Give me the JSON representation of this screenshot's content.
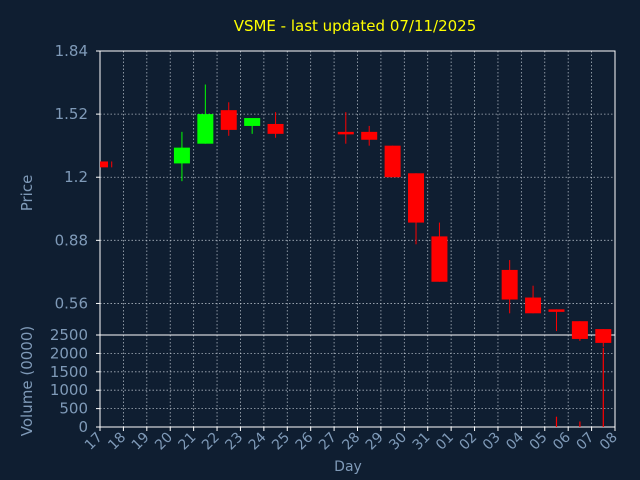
{
  "colors": {
    "background": "#0f1e31",
    "axis_text": "#7f9ab8",
    "frame": "#ffffff",
    "grid": "#d0d8e0",
    "title": "#ffff00",
    "up": "#00ff00",
    "down": "#ff0000"
  },
  "chart_data": {
    "type": "candlestick",
    "title": "VSME - last updated 07/11/2025",
    "price_ylabel": "Price",
    "volume_ylabel": "Volume (0000)",
    "xlabel": "Day",
    "price_ylim": [
      0.4,
      1.84
    ],
    "price_yticks": [
      "1.84",
      "1.52",
      "1.2",
      "0.88",
      "0.56"
    ],
    "volume_ylim": [
      0,
      2500
    ],
    "volume_yticks": [
      "2500",
      "2000",
      "1500",
      "1000",
      "500",
      "0"
    ],
    "x_ticks": [
      "17",
      "18",
      "19",
      "20",
      "21",
      "22",
      "23",
      "24",
      "25",
      "26",
      "27",
      "28",
      "29",
      "30",
      "31",
      "01",
      "02",
      "03",
      "04",
      "05",
      "06",
      "07",
      "08"
    ],
    "grid": true,
    "candles": [
      {
        "day": "17",
        "open": 1.28,
        "high": 1.28,
        "low": 1.25,
        "close": 1.25,
        "volume": 0
      },
      {
        "day": "20",
        "open": 1.27,
        "high": 1.43,
        "low": 1.18,
        "close": 1.35,
        "volume": 0
      },
      {
        "day": "21",
        "open": 1.37,
        "high": 1.67,
        "low": 1.37,
        "close": 1.52,
        "volume": 0
      },
      {
        "day": "22",
        "open": 1.54,
        "high": 1.58,
        "low": 1.41,
        "close": 1.44,
        "volume": 0
      },
      {
        "day": "23",
        "open": 1.46,
        "high": 1.49,
        "low": 1.42,
        "close": 1.5,
        "volume": 0
      },
      {
        "day": "24",
        "open": 1.47,
        "high": 1.53,
        "low": 1.4,
        "close": 1.42,
        "volume": 0
      },
      {
        "day": "27",
        "open": 1.43,
        "high": 1.53,
        "low": 1.37,
        "close": 1.42,
        "volume": 0
      },
      {
        "day": "28",
        "open": 1.43,
        "high": 1.46,
        "low": 1.36,
        "close": 1.39,
        "volume": 0
      },
      {
        "day": "29",
        "open": 1.36,
        "high": 1.36,
        "low": 1.2,
        "close": 1.2,
        "volume": 0
      },
      {
        "day": "30",
        "open": 1.22,
        "high": 1.22,
        "low": 0.86,
        "close": 0.97,
        "volume": 0
      },
      {
        "day": "31",
        "open": 0.9,
        "high": 0.97,
        "low": 0.67,
        "close": 0.67,
        "volume": 0
      },
      {
        "day": "03",
        "open": 0.73,
        "high": 0.78,
        "low": 0.51,
        "close": 0.58,
        "volume": 0
      },
      {
        "day": "04",
        "open": 0.59,
        "high": 0.65,
        "low": 0.51,
        "close": 0.51,
        "volume": 0
      },
      {
        "day": "05",
        "open": 0.53,
        "high": 0.53,
        "low": 0.42,
        "close": 0.52,
        "volume": 280
      },
      {
        "day": "06",
        "open": 0.47,
        "high": 0.47,
        "low": 0.37,
        "close": 0.38,
        "volume": 150
      },
      {
        "day": "07",
        "open": 0.43,
        "high": 0.43,
        "low": 0.34,
        "close": 0.36,
        "volume": 2150
      }
    ]
  }
}
